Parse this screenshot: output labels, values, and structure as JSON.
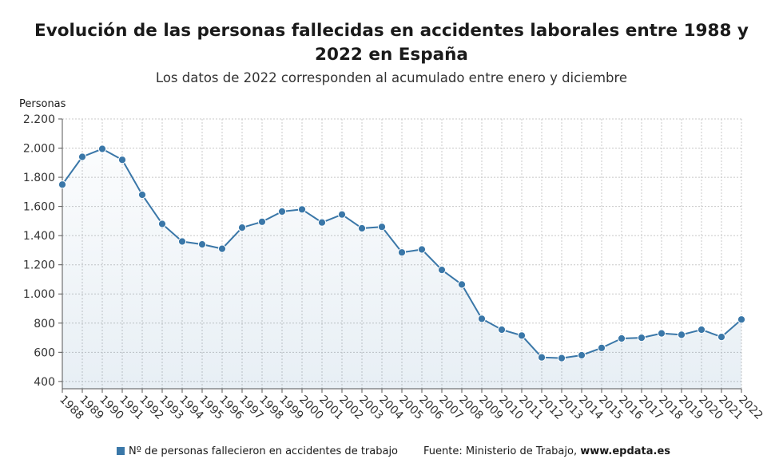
{
  "chart_data": {
    "type": "area",
    "title": "Evolución de las personas fallecidas en accidentes laborales entre 1988 y 2022 en España",
    "subtitle": "Los datos de 2022 corresponden al acumulado entre enero y diciembre",
    "ylabel": "Personas",
    "ylim": [
      350,
      2200
    ],
    "yticks": [
      400,
      600,
      800,
      1000,
      1200,
      1400,
      1600,
      1800,
      2000,
      2200
    ],
    "ytick_labels": [
      "400",
      "600",
      "800",
      "1.000",
      "1.200",
      "1.400",
      "1.600",
      "1.800",
      "2.000",
      "2.200"
    ],
    "categories": [
      "1988",
      "1989",
      "1990",
      "1991",
      "1992",
      "1993",
      "1994",
      "1995",
      "1996",
      "1997",
      "1998",
      "1999",
      "2000",
      "2001",
      "2002",
      "2003",
      "2004",
      "2005",
      "2006",
      "2007",
      "2008",
      "2009",
      "2010",
      "2011",
      "2012",
      "2013",
      "2014",
      "2015",
      "2016",
      "2017",
      "2018",
      "2019",
      "2020",
      "2021",
      "2022"
    ],
    "series": [
      {
        "name": "Nº de personas fallecieron en accidentes de trabajo",
        "color": "#3a77a8",
        "values": [
          1750,
          1940,
          1995,
          1920,
          1680,
          1480,
          1360,
          1340,
          1310,
          1455,
          1495,
          1565,
          1580,
          1490,
          1545,
          1450,
          1460,
          1285,
          1305,
          1165,
          1065,
          830,
          755,
          715,
          565,
          560,
          580,
          630,
          695,
          700,
          730,
          720,
          755,
          705,
          825
        ]
      }
    ],
    "grid": true,
    "legend_position": "bottom-left"
  },
  "footer": {
    "legend_label": "Nº de personas fallecieron en accidentes de trabajo",
    "source_prefix": "Fuente: Ministerio de Trabajo, ",
    "source_site": "www.epdata.es"
  }
}
